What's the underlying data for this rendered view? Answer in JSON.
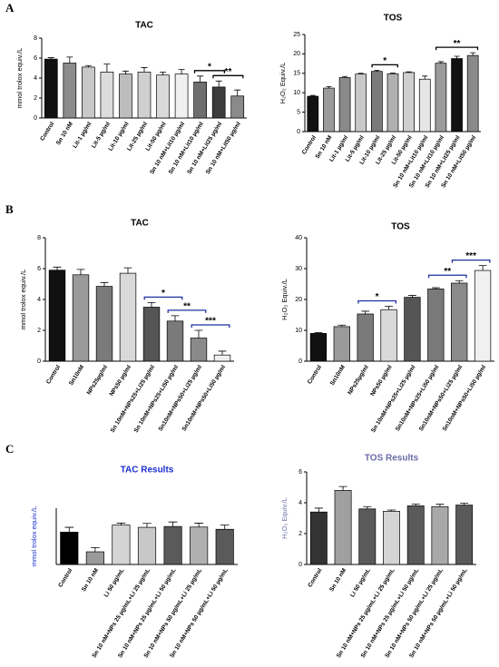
{
  "chart_data": [
    {
      "type": "bar",
      "panel": "A",
      "title": "TAC",
      "ylabel": "mmol trolox equiv./L",
      "categories": [
        "Control",
        "Sn 10 nM",
        "Lit-1 µg/ml",
        "Lit-5 µg/ml",
        "Lit-10 µg/ml",
        "Lit-25 µg/ml",
        "Lit-50 µg/ml",
        "Sn 10 nM+Lit10 µg/ml",
        "Sn 10 nM+Lit10 µg/ml",
        "Sn 10 nM+Lit25 µg/ml",
        "Sn 10 nM+Lit50 µg/ml"
      ],
      "values": [
        5.9,
        5.5,
        5.1,
        4.6,
        4.4,
        4.6,
        4.3,
        4.4,
        3.6,
        3.1,
        2.2
      ],
      "errors": [
        0.15,
        0.6,
        0.15,
        0.8,
        0.3,
        0.45,
        0.3,
        0.45,
        0.6,
        0.6,
        0.6
      ],
      "colors": [
        "#111111",
        "#8c8c8c",
        "#c8c8c8",
        "#dcdcdc",
        "#bdbdbd",
        "#cfcfcf",
        "#d9d9d9",
        "#f0f0f0",
        "#6e6e6e",
        "#3c3c3c",
        "#8a8a8a"
      ],
      "annotations": [
        "*",
        "**"
      ],
      "annotation_color": "#000000",
      "ylim": [
        0,
        8
      ],
      "yticks": [
        0,
        2,
        4,
        6,
        8
      ]
    },
    {
      "type": "bar",
      "title": "TOS",
      "ylabel": "H₂O₂ Equiv./L",
      "categories": [
        "Control",
        "Sn 10 nM",
        "Lit-1 µg/ml",
        "Lit-5 µg/ml",
        "Lit-10 µg/ml",
        "Lit-25 µg/ml",
        "Lit-50 µg/ml",
        "Sn 10 nM+Lit10 µg/ml",
        "Sn 10 nM+Lit10 µg/ml",
        "Sn 10 nM+Lit25 µg/ml",
        "Sn 10 nM+Lit50 µg/ml"
      ],
      "values": [
        9.1,
        11.2,
        13.9,
        14.8,
        15.5,
        14.9,
        15.2,
        13.5,
        17.6,
        18.8,
        19.6
      ],
      "errors": [
        0.2,
        0.4,
        0.3,
        0.2,
        0.3,
        0.2,
        0.2,
        0.8,
        0.4,
        0.6,
        0.7
      ],
      "colors": [
        "#111111",
        "#9a9a9a",
        "#8a8a8a",
        "#c8c8c8",
        "#7a7a7a",
        "#b0b0b0",
        "#cfcfcf",
        "#e6e6e6",
        "#9a9a9a",
        "#111111",
        "#8a8a8a"
      ],
      "annotations": [
        "*",
        "**"
      ],
      "annotation_color": "#000000",
      "ylim": [
        0,
        25
      ],
      "yticks": [
        0,
        5,
        10,
        15,
        20,
        25
      ]
    },
    {
      "type": "bar",
      "panel": "B",
      "title": "TAC",
      "ylabel": "mmol trolox equiv./L",
      "categories": [
        "Control",
        "Sn10nM",
        "NPs25µg/ml",
        "NPs50 µg/ml",
        "Sn 10nM+NPs25+Li25 µg/ml",
        "Sn 10nM+NPs25+Li50 µg/ml",
        "Sn10nM+NPs50+Li25 µg/ml",
        "Sn10nM+NPs50+Li50 µg/ml"
      ],
      "values": [
        5.9,
        5.6,
        4.85,
        5.7,
        3.5,
        2.6,
        1.5,
        0.4
      ],
      "errors": [
        0.2,
        0.35,
        0.25,
        0.35,
        0.3,
        0.35,
        0.5,
        0.25
      ],
      "colors": [
        "#111111",
        "#9a9a9a",
        "#7a7a7a",
        "#d9d9d9",
        "#555555",
        "#7a7a7a",
        "#8a8a8a",
        "#f0f0f0"
      ],
      "annotations": [
        "*",
        "**",
        "***"
      ],
      "annotation_color": "#1f2fa0",
      "ylim": [
        0,
        8
      ],
      "yticks": [
        0,
        2,
        4,
        6,
        8
      ]
    },
    {
      "type": "bar",
      "title": "TOS",
      "ylabel": "H₂O₂ Equiv./L",
      "categories": [
        "Control",
        "Sn10nM",
        "NPs25µg/ml",
        "NPs50 µg/ml",
        "Sn 10nM+NPs25+Li25 µg/ml",
        "Sn10nM+NPs25+Li50 µg/ml",
        "Sn10nM+NPs50+Li25 µg/ml",
        "Sn10nM+NPs50+Li50 µg/ml"
      ],
      "values": [
        9,
        11.2,
        15.3,
        16.7,
        20.7,
        23.4,
        25.3,
        29.4
      ],
      "errors": [
        0.3,
        0.5,
        0.9,
        1.1,
        0.6,
        0.4,
        0.8,
        1.6
      ],
      "colors": [
        "#111111",
        "#9a9a9a",
        "#7a7a7a",
        "#d9d9d9",
        "#555555",
        "#7a7a7a",
        "#8a8a8a",
        "#f0f0f0"
      ],
      "annotations": [
        "*",
        "**",
        "***"
      ],
      "annotation_color": "#1f2fa0",
      "ylim": [
        0,
        40
      ],
      "yticks": [
        0,
        10,
        20,
        30,
        40
      ]
    },
    {
      "type": "bar",
      "panel": "C",
      "title": "TAC Results",
      "ylabel": "mmol trolox equiv./L",
      "title_color": "#1a2fd0",
      "categories": [
        "Control",
        "Sn 10 nM",
        "Li 50 µg/mL",
        "Sn 10 nM+NPs 25 µg/mL+Li 25 µg/mL",
        "Sn 10 nM+NPs 25 µg/mL+Li 50 µg/mL",
        "Sn 10 nM+NPs 50 µg/mL+Li 25 µg/mL",
        "Sn 10 nM+NPs 50 µg/mL+Li 50 µg/mL"
      ],
      "values": [
        1.15,
        0.45,
        1.4,
        1.32,
        1.35,
        1.33,
        1.25
      ],
      "errors": [
        0.17,
        0.15,
        0.07,
        0.14,
        0.16,
        0.14,
        0.15
      ],
      "colors": [
        "#000000",
        "#9a9a9a",
        "#d4d4d4",
        "#c8c8c8",
        "#5a5a5a",
        "#b0b0b0",
        "#5a5a5a"
      ],
      "ylim": [
        0,
        2
      ]
    },
    {
      "type": "bar",
      "title": "TOS Results",
      "ylabel": "H₂O₂ Equiv./L",
      "title_color": "#6a6aa8",
      "categories": [
        "Control",
        "Sn 10 nM",
        "Li 50 µg/mL",
        "Sn 10 nM+NPs 25 µg/mL+Li 25 µg/mL",
        "Sn 10 nM+NPs 25 µg/mL+Li 50 µg/mL",
        "Sn 10 nM+NPs 50 µg/mL+Li 25 µg/mL",
        "Sn 10 nM+NPs 50 µg/mL+Li 50 µg/mL"
      ],
      "values": [
        3.4,
        4.8,
        3.6,
        3.45,
        3.8,
        3.75,
        3.85
      ],
      "errors": [
        0.25,
        0.25,
        0.15,
        0.08,
        0.12,
        0.15,
        0.12
      ],
      "colors": [
        "#333333",
        "#a0a0a0",
        "#5a5a5a",
        "#d4d4d4",
        "#5a5a5a",
        "#a8a8a8",
        "#5a5a5a"
      ],
      "ylim": [
        0,
        6
      ],
      "yticks": [
        0,
        2,
        4,
        6
      ]
    }
  ]
}
